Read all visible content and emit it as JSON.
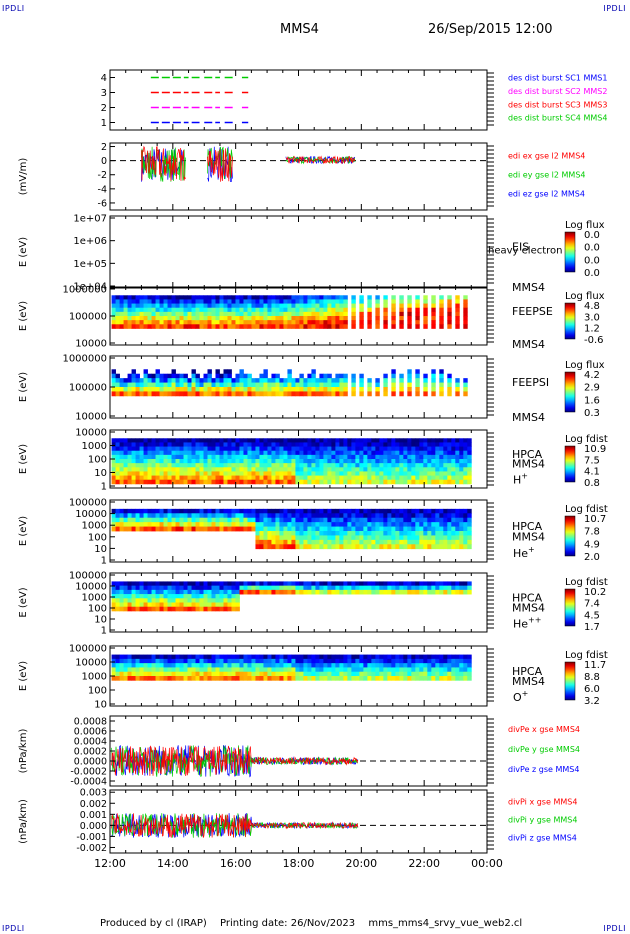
{
  "header": {
    "corner_tl": "IPDLI",
    "corner_tr": "IPDLI",
    "corner_bl": "IPDLI",
    "corner_br": "IPDLI",
    "spacecraft": "MMS4",
    "date_time": "26/Sep/2015 12:00"
  },
  "footer": {
    "produced_by": "Produced by cl (IRAP)",
    "printing_date": "Printing date: 26/Nov/2023",
    "script_name": "mms_mms4_srvy_vue_web2.cl"
  },
  "colors": {
    "mms1": "#0000ff",
    "mms2": "#ff00ff",
    "mms3": "#ff0000",
    "mms4": "#00cc00",
    "x_comp": "#ff0000",
    "y_comp": "#00cc00",
    "z_comp": "#0000ff"
  },
  "chart_data": [
    {
      "type": "line",
      "id": "burst",
      "ytick_labels": [
        "4",
        "3",
        "2",
        "1"
      ],
      "yticks": [
        4,
        3,
        2,
        1
      ],
      "ylim": [
        0.5,
        4.5
      ],
      "legend": [
        "des dist burst SC1 MMS1",
        "des dist burst SC2 MMS2",
        "des dist burst SC3 MMS3",
        "des dist burst SC4 MMS4"
      ],
      "legend_colors": [
        "#0000ff",
        "#ff00ff",
        "#ff0000",
        "#00cc00"
      ],
      "series": [
        {
          "level": 4,
          "color": "#00cc00",
          "segments": [
            [
              13.3,
              14.5
            ],
            [
              14.6,
              14.85
            ],
            [
              15.0,
              15.5
            ],
            [
              15.65,
              15.95
            ],
            [
              16.2,
              16.4
            ]
          ]
        },
        {
          "level": 3,
          "color": "#ff0000",
          "segments": [
            [
              13.3,
              14.5
            ],
            [
              14.6,
              14.85
            ],
            [
              15.0,
              15.5
            ],
            [
              15.65,
              15.95
            ],
            [
              16.2,
              16.4
            ]
          ]
        },
        {
          "level": 2,
          "color": "#ff00ff",
          "segments": [
            [
              13.3,
              14.5
            ],
            [
              14.6,
              14.85
            ],
            [
              15.0,
              15.5
            ],
            [
              15.65,
              15.95
            ],
            [
              16.2,
              16.4
            ]
          ]
        },
        {
          "level": 1,
          "color": "#0000ff",
          "segments": [
            [
              13.3,
              14.5
            ],
            [
              14.6,
              14.85
            ],
            [
              15.0,
              15.5
            ],
            [
              15.65,
              15.95
            ],
            [
              16.2,
              16.4
            ]
          ]
        }
      ]
    },
    {
      "type": "line",
      "id": "edi",
      "ylabel": "(mV/m)",
      "ytick_labels": [
        "2",
        "0",
        "-2",
        "-4",
        "-6"
      ],
      "yticks": [
        2,
        0,
        -2,
        -4,
        -6
      ],
      "ylim": [
        -7,
        2.5
      ],
      "legend": [
        "edi ex gse l2 MMS4",
        "edi ey gse l2 MMS4",
        "edi ez gse l2 MMS4"
      ],
      "legend_colors": [
        "#ff0000",
        "#00cc00",
        "#0000ff"
      ]
    },
    {
      "type": "heatmap",
      "id": "eis",
      "ylabel": "E (eV)",
      "ytick_labels": [
        "1e+07",
        "1e+06",
        "1e+05",
        "1e+04"
      ],
      "instrument": "EIS",
      "overlay_text": "heavy electron to",
      "spacecraft": "MMS4",
      "colorbar_title": "Log flux",
      "colorbar_ticks": [
        "0.0",
        "0.0",
        "0.0",
        "0.0"
      ]
    },
    {
      "type": "heatmap",
      "id": "feepse",
      "ylabel": "E (eV)",
      "ytick_labels": [
        "1000000",
        "100000",
        "10000"
      ],
      "instrument": "FEEPSE",
      "spacecraft": "MMS4",
      "colorbar_title": "Log flux",
      "colorbar_ticks": [
        "4.8",
        "3.0",
        "1.2",
        "-0.6"
      ]
    },
    {
      "type": "heatmap",
      "id": "feepsi",
      "ylabel": "E (eV)",
      "ytick_labels": [
        "1000000",
        "100000",
        "10000"
      ],
      "instrument": "FEEPSI",
      "spacecraft": "MMS4",
      "colorbar_title": "Log flux",
      "colorbar_ticks": [
        "4.2",
        "2.9",
        "1.6",
        "0.3"
      ]
    },
    {
      "type": "heatmap",
      "id": "hpca_h",
      "ylabel": "E (eV)",
      "ytick_labels": [
        "10000",
        "1000",
        "100",
        "10",
        "1"
      ],
      "instrument": "HPCA",
      "spacecraft": "MMS4",
      "species": "H",
      "species_charge": "+",
      "colorbar_title": "Log fdist",
      "colorbar_ticks": [
        "10.9",
        "7.5",
        "4.1",
        "0.8"
      ]
    },
    {
      "type": "heatmap",
      "id": "hpca_he",
      "ylabel": "E (eV)",
      "ytick_labels": [
        "100000",
        "10000",
        "1000",
        "100",
        "10",
        "1"
      ],
      "instrument": "HPCA",
      "spacecraft": "MMS4",
      "species": "He",
      "species_charge": "+",
      "colorbar_title": "Log fdist",
      "colorbar_ticks": [
        "10.7",
        "7.8",
        "4.9",
        "2.0"
      ]
    },
    {
      "type": "heatmap",
      "id": "hpca_hepp",
      "ylabel": "E (eV)",
      "ytick_labels": [
        "100000",
        "10000",
        "1000",
        "100",
        "10",
        "1"
      ],
      "instrument": "HPCA",
      "spacecraft": "MMS4",
      "species": "He",
      "species_charge": "++",
      "colorbar_title": "Log fdist",
      "colorbar_ticks": [
        "10.2",
        "7.4",
        "4.5",
        "1.7"
      ]
    },
    {
      "type": "heatmap",
      "id": "hpca_o",
      "ylabel": "E (eV)",
      "ytick_labels": [
        "100000",
        "10000",
        "1000",
        "100",
        "10"
      ],
      "instrument": "HPCA",
      "spacecraft": "MMS4",
      "species": "O",
      "species_charge": "+",
      "colorbar_title": "Log fdist",
      "colorbar_ticks": [
        "11.7",
        "8.8",
        "6.0",
        "3.2"
      ]
    },
    {
      "type": "line",
      "id": "divpe",
      "ylabel": "(nPa/km)",
      "ytick_labels": [
        "0.0008",
        "0.0006",
        "0.0004",
        "0.0002",
        "0.0000",
        "-0.0002",
        "-0.0004"
      ],
      "yticks": [
        0.0008,
        0.0006,
        0.0004,
        0.0002,
        0,
        -0.0002,
        -0.0004
      ],
      "ylim": [
        -0.0005,
        0.0009
      ],
      "legend": [
        "divPe x gse MMS4",
        "divPe y gse MMS4",
        "divPe z gse MMS4"
      ],
      "legend_colors": [
        "#ff0000",
        "#00cc00",
        "#0000ff"
      ]
    },
    {
      "type": "line",
      "id": "divpi",
      "ylabel": "(nPa/km)",
      "ytick_labels": [
        "0.003",
        "0.002",
        "0.001",
        "0.000",
        "-0.001",
        "-0.002"
      ],
      "yticks": [
        0.003,
        0.002,
        0.001,
        0,
        -0.001,
        -0.002
      ],
      "ylim": [
        -0.0025,
        0.0032
      ],
      "legend": [
        "divPi x gse MMS4",
        "divPi y gse MMS4",
        "divPi z gse MMS4"
      ],
      "legend_colors": [
        "#ff0000",
        "#00cc00",
        "#0000ff"
      ]
    }
  ],
  "time_axis": {
    "tick_labels": [
      "12:00",
      "14:00",
      "16:00",
      "18:00",
      "20:00",
      "22:00",
      "00:00"
    ],
    "start_hour": 12,
    "end_hour": 24,
    "data_end_hour": 23.5
  }
}
